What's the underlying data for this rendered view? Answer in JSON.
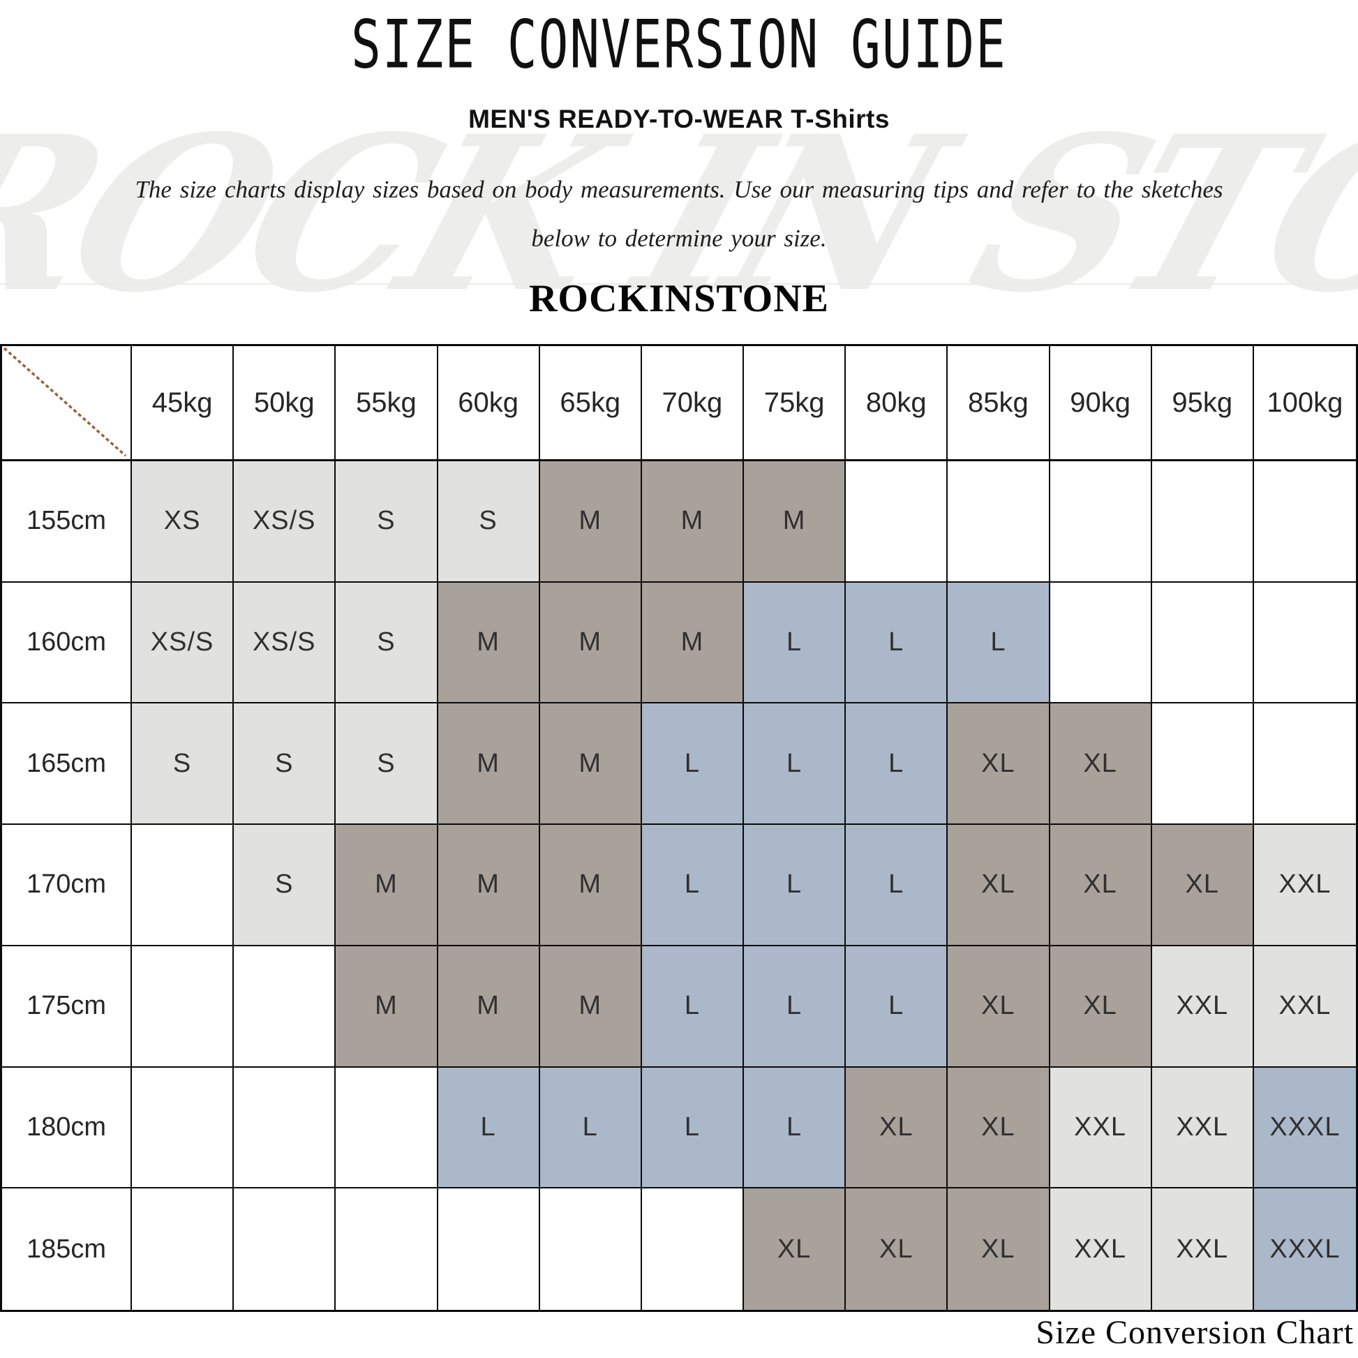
{
  "page": {
    "title": "SIZE CONVERSION GUIDE",
    "subtitle": "MEN'S READY-TO-WEAR T-Shirts",
    "description_line1": "The size charts display sizes based on body measurements. Use our measuring tips and refer to the sketches",
    "description_line2": "below to determine your size.",
    "brand": "ROCKINSTONE",
    "watermark": "ROCK IN STONE",
    "footer_caption": "Size Conversion Chart"
  },
  "colors": {
    "cell_light_gray": "#e1e1df",
    "cell_taupe_gray": "#a9a29b",
    "cell_blue_gray": "#abb8c9",
    "grid_border": "#0a0a0a",
    "diagonal_line": "#9a5f3b",
    "watermark_gray": "#ededeb"
  },
  "chart_data": {
    "type": "table",
    "title": "SIZE CONVERSION GUIDE",
    "subtitle": "MEN'S READY-TO-WEAR T-Shirts",
    "column_headers": [
      "45kg",
      "50kg",
      "55kg",
      "60kg",
      "65kg",
      "70kg",
      "75kg",
      "80kg",
      "85kg",
      "90kg",
      "95kg",
      "100kg"
    ],
    "row_headers": [
      "155cm",
      "160cm",
      "165cm",
      "170cm",
      "175cm",
      "180cm",
      "185cm"
    ],
    "cells": [
      [
        "XS",
        "XS/S",
        "S",
        "S",
        "M",
        "M",
        "M",
        "",
        "",
        "",
        "",
        ""
      ],
      [
        "XS/S",
        "XS/S",
        "S",
        "M",
        "M",
        "M",
        "L",
        "L",
        "L",
        "",
        "",
        ""
      ],
      [
        "S",
        "S",
        "S",
        "M",
        "M",
        "L",
        "L",
        "L",
        "XL",
        "XL",
        "",
        ""
      ],
      [
        "",
        "S",
        "M",
        "M",
        "M",
        "L",
        "L",
        "L",
        "XL",
        "XL",
        "XL",
        "XXL"
      ],
      [
        "",
        "",
        "M",
        "M",
        "M",
        "L",
        "L",
        "L",
        "XL",
        "XL",
        "XXL",
        "XXL"
      ],
      [
        "",
        "",
        "",
        "L",
        "L",
        "L",
        "L",
        "XL",
        "XL",
        "XXL",
        "XXL",
        "XXXL"
      ],
      [
        "",
        "",
        "",
        "",
        "",
        "",
        "XL",
        "XL",
        "XL",
        "XXL",
        "XXL",
        "XXXL"
      ]
    ],
    "cell_fills": [
      [
        "g",
        "g",
        "g",
        "g",
        "t",
        "t",
        "t",
        "w",
        "w",
        "w",
        "w",
        "w"
      ],
      [
        "g",
        "g",
        "g",
        "t",
        "t",
        "t",
        "b",
        "b",
        "b",
        "w",
        "w",
        "w"
      ],
      [
        "g",
        "g",
        "g",
        "t",
        "t",
        "b",
        "b",
        "b",
        "t",
        "t",
        "w",
        "w"
      ],
      [
        "w",
        "g",
        "t",
        "t",
        "t",
        "b",
        "b",
        "b",
        "t",
        "t",
        "t",
        "g"
      ],
      [
        "w",
        "w",
        "t",
        "t",
        "t",
        "b",
        "b",
        "b",
        "t",
        "t",
        "g",
        "g"
      ],
      [
        "w",
        "w",
        "w",
        "b",
        "b",
        "b",
        "b",
        "t",
        "t",
        "g",
        "g",
        "b"
      ],
      [
        "w",
        "w",
        "w",
        "w",
        "w",
        "w",
        "t",
        "t",
        "t",
        "g",
        "g",
        "b"
      ]
    ],
    "fill_legend": {
      "w": "white",
      "g": "light-gray",
      "t": "taupe-gray",
      "b": "blue-gray"
    }
  }
}
